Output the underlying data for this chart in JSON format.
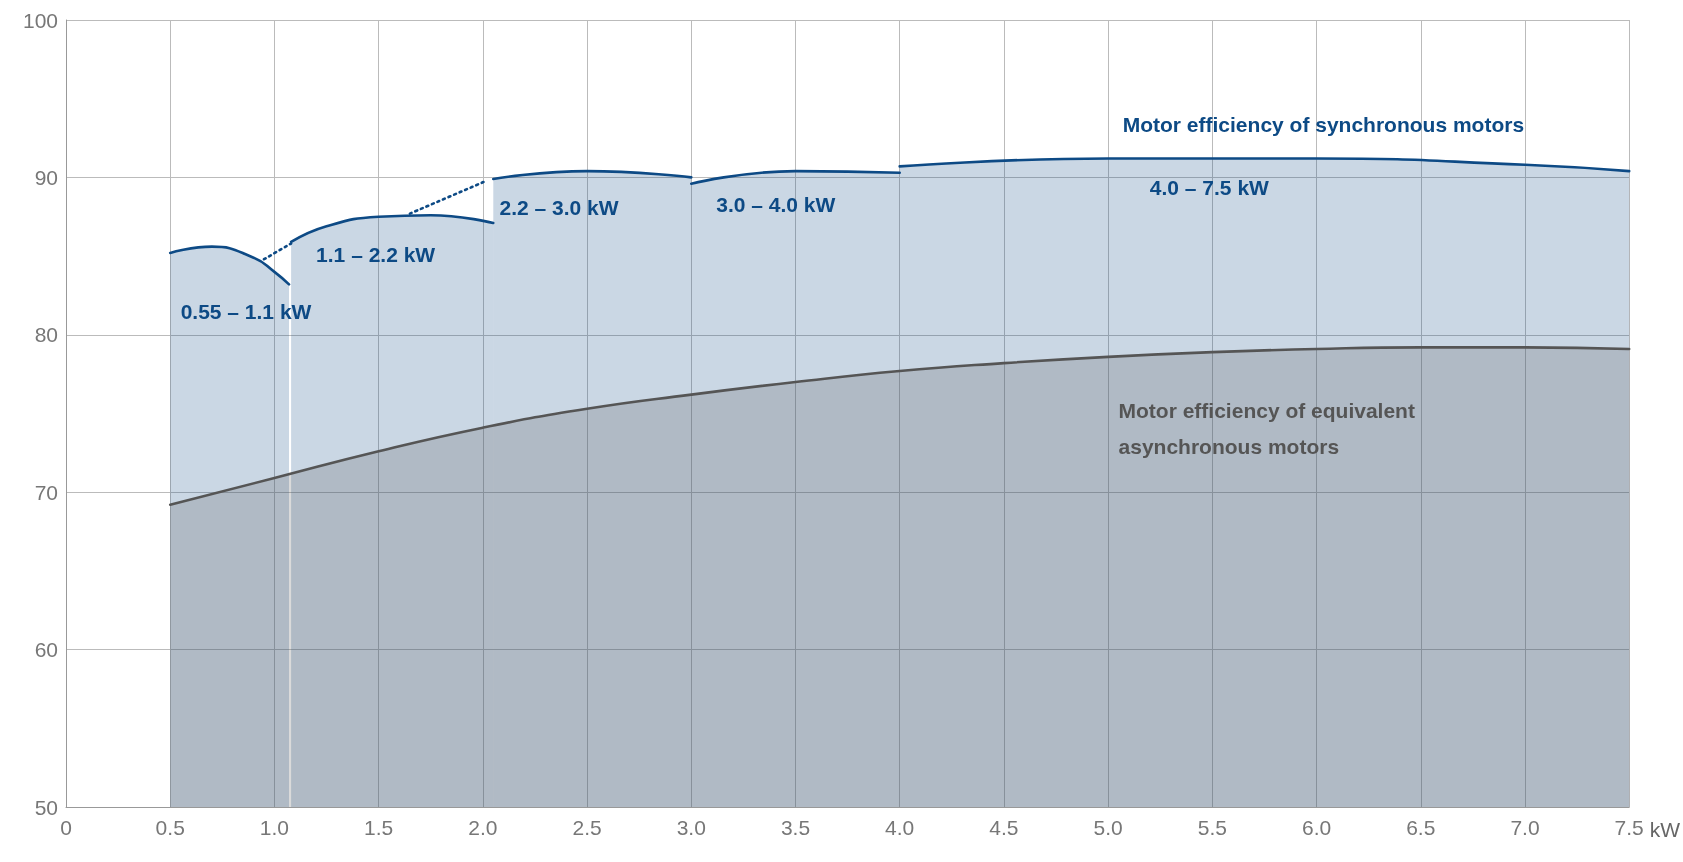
{
  "chart_data": {
    "type": "area",
    "xlabel": "kW",
    "xlim": [
      0,
      7.5
    ],
    "ylim": [
      50,
      100
    ],
    "xticks": [
      0,
      0.5,
      {
        "value": 1,
        "label": "1.0"
      },
      1.5,
      {
        "value": 2,
        "label": "2.0"
      },
      2.5,
      {
        "value": 3,
        "label": "3.0"
      },
      3.5,
      {
        "value": 4,
        "label": "4.0"
      },
      4.5,
      {
        "value": 5,
        "label": "5.0"
      },
      5.5,
      {
        "value": 6,
        "label": "6.0"
      },
      6.5,
      {
        "value": 7,
        "label": "7.0"
      },
      7.5
    ],
    "yticks": [
      50,
      60,
      70,
      80,
      90,
      100
    ],
    "grid": true,
    "marker": "none",
    "series": [
      {
        "color": "#0d4a85",
        "x": [
          0.5,
          0.7,
          0.9,
          1.0,
          1.07
        ],
        "values": [
          85.2,
          85.6,
          84.9,
          84.0,
          83.2
        ]
      },
      {
        "type": "line",
        "color": "#0d4a85",
        "line_style": "dotted",
        "x": [
          0.95,
          1.08
        ],
        "values": [
          84.8,
          85.8
        ]
      },
      {
        "color": "#0d4a85",
        "x": [
          1.08,
          1.25,
          1.5,
          1.75,
          2.05
        ],
        "values": [
          85.9,
          86.9,
          87.5,
          87.6,
          87.1
        ]
      },
      {
        "type": "line",
        "color": "#0d4a85",
        "line_style": "dotted",
        "x": [
          1.65,
          2.02
        ],
        "values": [
          87.7,
          89.8
        ]
      },
      {
        "color": "#0d4a85",
        "x": [
          2.05,
          2.5,
          3.0
        ],
        "values": [
          89.9,
          90.4,
          90.0
        ]
      },
      {
        "color": "#0d4a85",
        "x": [
          3.0,
          3.5,
          4.0
        ],
        "values": [
          89.6,
          90.4,
          90.3
        ]
      },
      {
        "color": "#0d4a85",
        "x": [
          4.0,
          5.0,
          6.0,
          7.0,
          7.5
        ],
        "values": [
          90.7,
          91.2,
          91.2,
          90.8,
          90.4
        ]
      },
      {
        "color": "#555555",
        "x": [
          0.5,
          1.0,
          1.5,
          2.0,
          2.5,
          3.0,
          3.5,
          4.0,
          4.5,
          5.0,
          5.5,
          6.0,
          6.5,
          7.0,
          7.5
        ],
        "values": [
          69.2,
          70.9,
          72.6,
          74.1,
          75.3,
          76.2,
          77.0,
          77.7,
          78.2,
          78.6,
          78.9,
          79.1,
          79.2,
          79.2,
          79.1
        ]
      }
    ],
    "annotations": [
      "0.55 – 1.1 kW",
      "1.1 – 2.2 kW",
      "2.2 – 3.0 kW",
      "3.0 – 4.0 kW",
      "4.0 – 7.5 kW",
      "Motor efficiency of synchronous motors",
      "Motor efficiency of equivalent asynchronous motors"
    ]
  }
}
